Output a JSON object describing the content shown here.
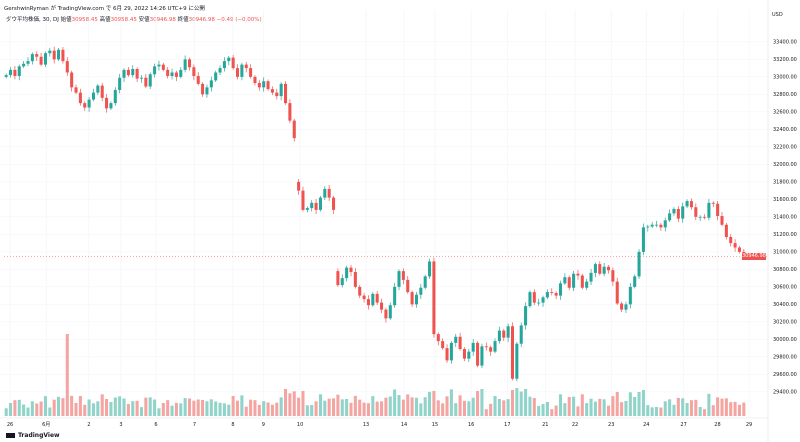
{
  "header": {
    "line1": "GershwinRyman が TradingView.com で 6月 29, 2022 14:26 UTC+9 に公開",
    "symbol": "ダウ平均株価, 30, DJ",
    "o_label": "始値",
    "o_val": "30958.45",
    "h_label": "高値",
    "h_val": "30958.45",
    "l_label": "安値",
    "l_val": "30946.98",
    "c_label": "終値",
    "c_val": "30946.98",
    "chg": "−0.49 (−0.00%)"
  },
  "currency": "USD",
  "last_price": "30946.98",
  "brand": "TradingView",
  "colors": {
    "up": "#26a69a",
    "down": "#ef5350",
    "up_vol": "#8fd3c9",
    "down_vol": "#f4a5a2",
    "grid": "#f0f3fa",
    "text": "#131722"
  },
  "chart_data": {
    "type": "candlestick",
    "ylim": [
      29250,
      33650
    ],
    "y_ticks": [
      29400,
      29600,
      29800,
      30000,
      30200,
      30400,
      30600,
      30800,
      31000,
      31200,
      31400,
      31600,
      31800,
      32000,
      32200,
      32400,
      32600,
      32800,
      33000,
      33200,
      33400
    ],
    "y_tick_labels": [
      "29400.00",
      "29600.00",
      "29800.00",
      "30000.00",
      "30200.00",
      "30400.00",
      "30600.00",
      "30800.00",
      "31000.00",
      "31200.00",
      "31400.00",
      "31600.00",
      "31800.00",
      "32000.00",
      "32200.00",
      "32400.00",
      "32600.00",
      "32800.00",
      "33000.00",
      "33200.00",
      "33400.00"
    ],
    "x_labels": [
      {
        "label": "26",
        "pos": 0.0
      },
      {
        "label": "6月",
        "pos": 0.062
      },
      {
        "label": "2",
        "pos": 0.135
      },
      {
        "label": "3",
        "pos": 0.19
      },
      {
        "label": "6",
        "pos": 0.25
      },
      {
        "label": "7",
        "pos": 0.316
      },
      {
        "label": "8",
        "pos": 0.382
      },
      {
        "label": "9",
        "pos": 0.434
      },
      {
        "label": "10",
        "pos": 0.497
      },
      {
        "label": "13",
        "pos": 0.61
      },
      {
        "label": "14",
        "pos": 0.675
      },
      {
        "label": "15",
        "pos": 0.728
      },
      {
        "label": "16",
        "pos": 0.79
      },
      {
        "label": "17",
        "pos": 0.852
      },
      {
        "label": "21",
        "pos": 0.917
      },
      {
        "label": "22",
        "pos": 0.968
      },
      {
        "label": "23",
        "pos": 1.03
      },
      {
        "label": "24",
        "pos": 1.09
      },
      {
        "label": "27",
        "pos": 1.154
      },
      {
        "label": "28",
        "pos": 1.212
      },
      {
        "label": "29",
        "pos": 1.266
      }
    ],
    "segments": [
      {
        "label": "seg1",
        "start": 33000,
        "closes": [
          33020,
          33080,
          33010,
          33120,
          33150,
          33180,
          33260,
          33230,
          33140,
          33270,
          33300,
          33200,
          33310,
          33180,
          33050,
          32880,
          32820,
          32700,
          32650,
          32740,
          32820,
          32900,
          32760,
          32640,
          32700,
          32850,
          32990,
          33080,
          33020,
          33090,
          32980,
          32990,
          32890,
          33030,
          33120,
          33140,
          33080,
          33010,
          33050,
          33000,
          33080,
          33200,
          33110,
          33010,
          32920,
          32800,
          32880,
          32960,
          33050,
          33100,
          33180,
          33220,
          33100,
          33000,
          33140,
          33100,
          33000,
          32930,
          32880,
          32950,
          32860,
          32820,
          32780,
          32920,
          32700,
          32500,
          32300
        ]
      },
      {
        "label": "seg2",
        "start": 31800,
        "closes": [
          31700,
          31480,
          31500,
          31560,
          31480,
          31620,
          31720,
          31620,
          31480
        ]
      },
      {
        "label": "seg3",
        "start": 30780,
        "closes": [
          30620,
          30700,
          30820,
          30770,
          30600,
          30500,
          30460,
          30390,
          30520,
          30420,
          30340,
          30240,
          30390,
          30600,
          30780,
          30680,
          30540,
          30400,
          30510,
          30590,
          30720,
          30890,
          30060,
          29980,
          29900,
          29760,
          29960,
          30030,
          29890,
          29780,
          29860,
          29960,
          29700,
          29920,
          29910,
          29860,
          29980,
          30100,
          30020,
          30150,
          29550,
          29950,
          30160,
          30380,
          30540,
          30420,
          30420,
          30480,
          30540,
          30530,
          30500,
          30640,
          30710,
          30590,
          30750,
          30730,
          30590,
          30660,
          30760,
          30860,
          30750,
          30830,
          30790,
          30660,
          30410,
          30340,
          30400,
          30600,
          30720,
          31000,
          31280,
          31290,
          31310,
          31310,
          31280,
          31360,
          31440,
          31490,
          31380,
          31520,
          31580,
          31510,
          31400,
          31400,
          31390,
          31560,
          31550,
          31410,
          31310,
          31170,
          31100,
          31050,
          31000,
          30946.98
        ]
      }
    ],
    "volume_note": "volume histogram bars at bottom, colored by candle direction"
  }
}
